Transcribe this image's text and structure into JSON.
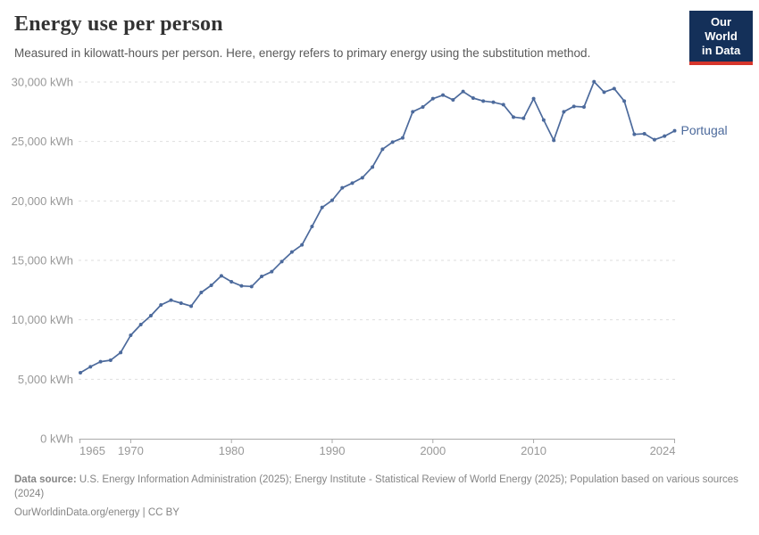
{
  "header": {
    "title": "Energy use per person",
    "subtitle": "Measured in kilowatt-hours per person. Here, energy refers to primary energy using the substitution method.",
    "logo": {
      "line1": "Our World",
      "line2": "in Data"
    }
  },
  "chart_data": {
    "type": "line",
    "title": "Energy use per person",
    "unit": "kWh",
    "entity_label": "Portugal",
    "xlabel": "",
    "ylabel": "",
    "xlim": [
      1965,
      2024
    ],
    "ylim": [
      0,
      30000
    ],
    "grid": "horizontal-dashed",
    "legend_position": "end-of-line-label",
    "x": [
      1965,
      1966,
      1967,
      1968,
      1969,
      1970,
      1971,
      1972,
      1973,
      1974,
      1975,
      1976,
      1977,
      1978,
      1979,
      1980,
      1981,
      1982,
      1983,
      1984,
      1985,
      1986,
      1987,
      1988,
      1989,
      1990,
      1991,
      1992,
      1993,
      1994,
      1995,
      1996,
      1997,
      1998,
      1999,
      2000,
      2001,
      2002,
      2003,
      2004,
      2005,
      2006,
      2007,
      2008,
      2009,
      2010,
      2011,
      2012,
      2013,
      2014,
      2015,
      2016,
      2017,
      2018,
      2019,
      2020,
      2021,
      2022,
      2023,
      2024
    ],
    "series": [
      {
        "name": "Portugal",
        "color": "#4C6A9C",
        "values": [
          5550,
          6050,
          6480,
          6600,
          7250,
          8700,
          9600,
          10350,
          11250,
          11650,
          11400,
          11150,
          12300,
          12900,
          13700,
          13200,
          12850,
          12800,
          13650,
          14050,
          14900,
          15700,
          16300,
          17850,
          19450,
          20050,
          21100,
          21500,
          21950,
          22850,
          24350,
          24950,
          25300,
          27500,
          27900,
          28600,
          28900,
          28500,
          29200,
          28650,
          28400,
          28300,
          28100,
          27050,
          26950,
          28600,
          26800,
          25100,
          27500,
          27950,
          27900,
          30030,
          29150,
          29450,
          28400,
          25600,
          25650,
          25150,
          25450,
          25900
        ]
      }
    ],
    "y_ticks": [
      {
        "value": 0,
        "label": "0 kWh"
      },
      {
        "value": 5000,
        "label": "5,000 kWh"
      },
      {
        "value": 10000,
        "label": "10,000 kWh"
      },
      {
        "value": 15000,
        "label": "15,000 kWh"
      },
      {
        "value": 20000,
        "label": "20,000 kWh"
      },
      {
        "value": 25000,
        "label": "25,000 kWh"
      },
      {
        "value": 30000,
        "label": "30,000 kWh"
      }
    ],
    "x_ticks": [
      {
        "value": 1965,
        "label": "1965"
      },
      {
        "value": 1970,
        "label": "1970"
      },
      {
        "value": 1980,
        "label": "1980"
      },
      {
        "value": 1990,
        "label": "1990"
      },
      {
        "value": 2000,
        "label": "2000"
      },
      {
        "value": 2010,
        "label": "2010"
      },
      {
        "value": 2024,
        "label": "2024"
      }
    ]
  },
  "footer": {
    "source_label": "Data source:",
    "source_text": " U.S. Energy Information Administration (2025); Energy Institute - Statistical Review of World Energy (2025); Population based on various sources (2024)",
    "link": "OurWorldinData.org/energy",
    "separator": " | ",
    "license": "CC BY"
  },
  "colors": {
    "line": "#4C6A9C",
    "entity_label": "#4C6A9C",
    "grid": "#dedede",
    "axis": "#aaaaaa",
    "tick_label": "#999999",
    "logo_bg": "#143059",
    "logo_bar": "#d6362c"
  }
}
